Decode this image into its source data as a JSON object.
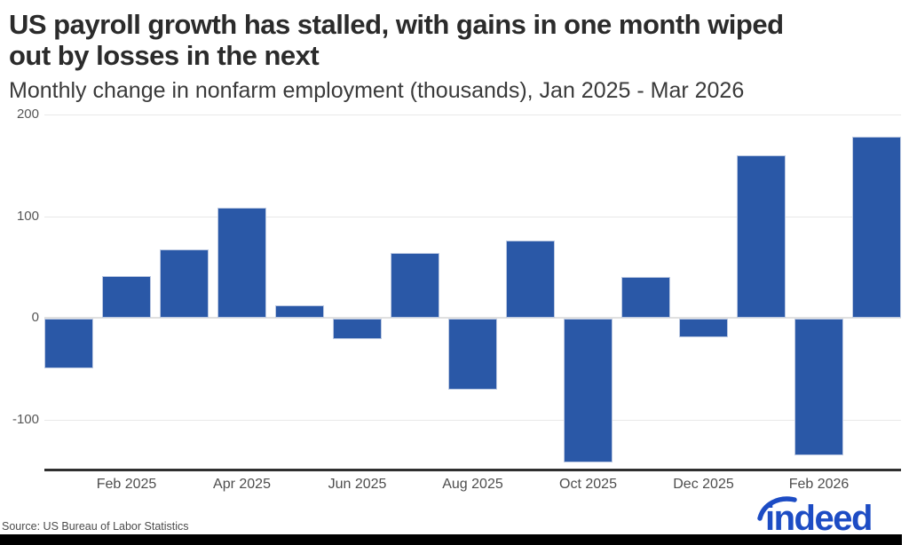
{
  "header": {
    "title_display": "US payroll growth has stalled, with gains in one month wiped\nout by losses in the next",
    "subtitle": "Monthly change in nonfarm employment (thousands), Jan 2025 - Mar 2026"
  },
  "chart_data": {
    "type": "bar",
    "title": "US payroll growth has stalled, with gains in one month wiped out by losses in the next",
    "subtitle": "Monthly change in nonfarm employment (thousands), Jan 2025 - Mar 2026",
    "categories": [
      "Jan 2025",
      "Feb 2025",
      "Mar 2025",
      "Apr 2025",
      "May 2025",
      "Jun 2025",
      "Jul 2025",
      "Aug 2025",
      "Sep 2025",
      "Oct 2025",
      "Nov 2025",
      "Dec 2025",
      "Jan 2026",
      "Feb 2026",
      "Mar 2026"
    ],
    "values": [
      -49,
      41,
      67,
      108,
      12,
      -20,
      64,
      -70,
      76,
      -141,
      40,
      -18,
      160,
      -134,
      178
    ],
    "xlabel": "",
    "ylabel": "",
    "ylim": [
      -150,
      200
    ],
    "yticks": [
      200,
      100,
      0,
      -100
    ],
    "xtick_labels": [
      "Feb 2025",
      "Apr 2025",
      "Jun 2025",
      "Aug 2025",
      "Oct 2025",
      "Dec 2025",
      "Feb 2026"
    ],
    "grid": true,
    "legend": false,
    "bar_color": "#2a58a7"
  },
  "footer": {
    "source": "Source: US Bureau of Labor Statistics",
    "logo_text": "indeed"
  },
  "colors": {
    "bar": "#2a58a7",
    "bar_border": "#bcc9e2",
    "logo_blue": "#1d4cc4",
    "grid": "#e8e8e8",
    "axis_line": "#2f2f2f"
  }
}
